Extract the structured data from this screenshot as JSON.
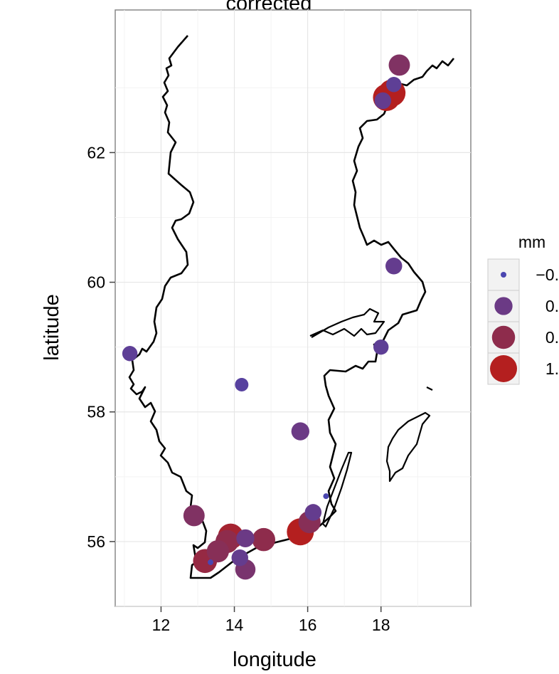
{
  "chart_data": {
    "type": "scatter",
    "title": "corrected",
    "xlabel": "longitude",
    "ylabel": "latitude",
    "xlim": [
      10.75,
      20.45
    ],
    "ylim": [
      55.0,
      64.2
    ],
    "x_ticks": [
      12,
      14,
      16,
      18
    ],
    "y_ticks": [
      56,
      58,
      60,
      62
    ],
    "x_tick_labels": [
      "12",
      "14",
      "16",
      "18"
    ],
    "y_tick_labels": [
      "56",
      "58",
      "60",
      "62"
    ],
    "grid": true,
    "legend": {
      "title": "mm",
      "placement": "right",
      "entries": [
        {
          "label": "−0.",
          "value": -0.5,
          "color": "#4a46b0"
        },
        {
          "label": "0.",
          "value": 0.0,
          "color": "#6b3a85"
        },
        {
          "label": "0.",
          "value": 0.5,
          "color": "#8e2c4c"
        },
        {
          "label": "1.",
          "value": 1.0,
          "color": "#b41f1f"
        }
      ]
    },
    "points": [
      {
        "lon": 11.15,
        "lat": 58.9,
        "mm": -0.2
      },
      {
        "lon": 14.2,
        "lat": 58.42,
        "mm": -0.3
      },
      {
        "lon": 15.8,
        "lat": 57.7,
        "mm": 0.0
      },
      {
        "lon": 18.0,
        "lat": 59.0,
        "mm": -0.2
      },
      {
        "lon": 18.35,
        "lat": 60.25,
        "mm": -0.1
      },
      {
        "lon": 18.5,
        "lat": 63.35,
        "mm": 0.3
      },
      {
        "lon": 18.35,
        "lat": 63.05,
        "mm": -0.2
      },
      {
        "lon": 18.3,
        "lat": 62.92,
        "mm": 1.0
      },
      {
        "lon": 18.15,
        "lat": 62.85,
        "mm": 1.1
      },
      {
        "lon": 18.05,
        "lat": 62.8,
        "mm": -0.1
      },
      {
        "lon": 12.9,
        "lat": 56.4,
        "mm": 0.3
      },
      {
        "lon": 13.2,
        "lat": 55.7,
        "mm": 0.6
      },
      {
        "lon": 13.35,
        "lat": 55.68,
        "mm": -0.5
      },
      {
        "lon": 13.55,
        "lat": 55.85,
        "mm": 0.4
      },
      {
        "lon": 13.8,
        "lat": 56.0,
        "mm": 0.5
      },
      {
        "lon": 13.9,
        "lat": 56.08,
        "mm": 0.8
      },
      {
        "lon": 14.15,
        "lat": 55.75,
        "mm": -0.1
      },
      {
        "lon": 14.3,
        "lat": 56.05,
        "mm": 0.0
      },
      {
        "lon": 14.3,
        "lat": 55.57,
        "mm": 0.2
      },
      {
        "lon": 14.8,
        "lat": 56.03,
        "mm": 0.5
      },
      {
        "lon": 15.8,
        "lat": 56.15,
        "mm": 1.1
      },
      {
        "lon": 16.05,
        "lat": 56.3,
        "mm": 0.4
      },
      {
        "lon": 16.15,
        "lat": 56.45,
        "mm": -0.1
      },
      {
        "lon": 16.5,
        "lat": 56.7,
        "mm": -0.6
      }
    ]
  }
}
